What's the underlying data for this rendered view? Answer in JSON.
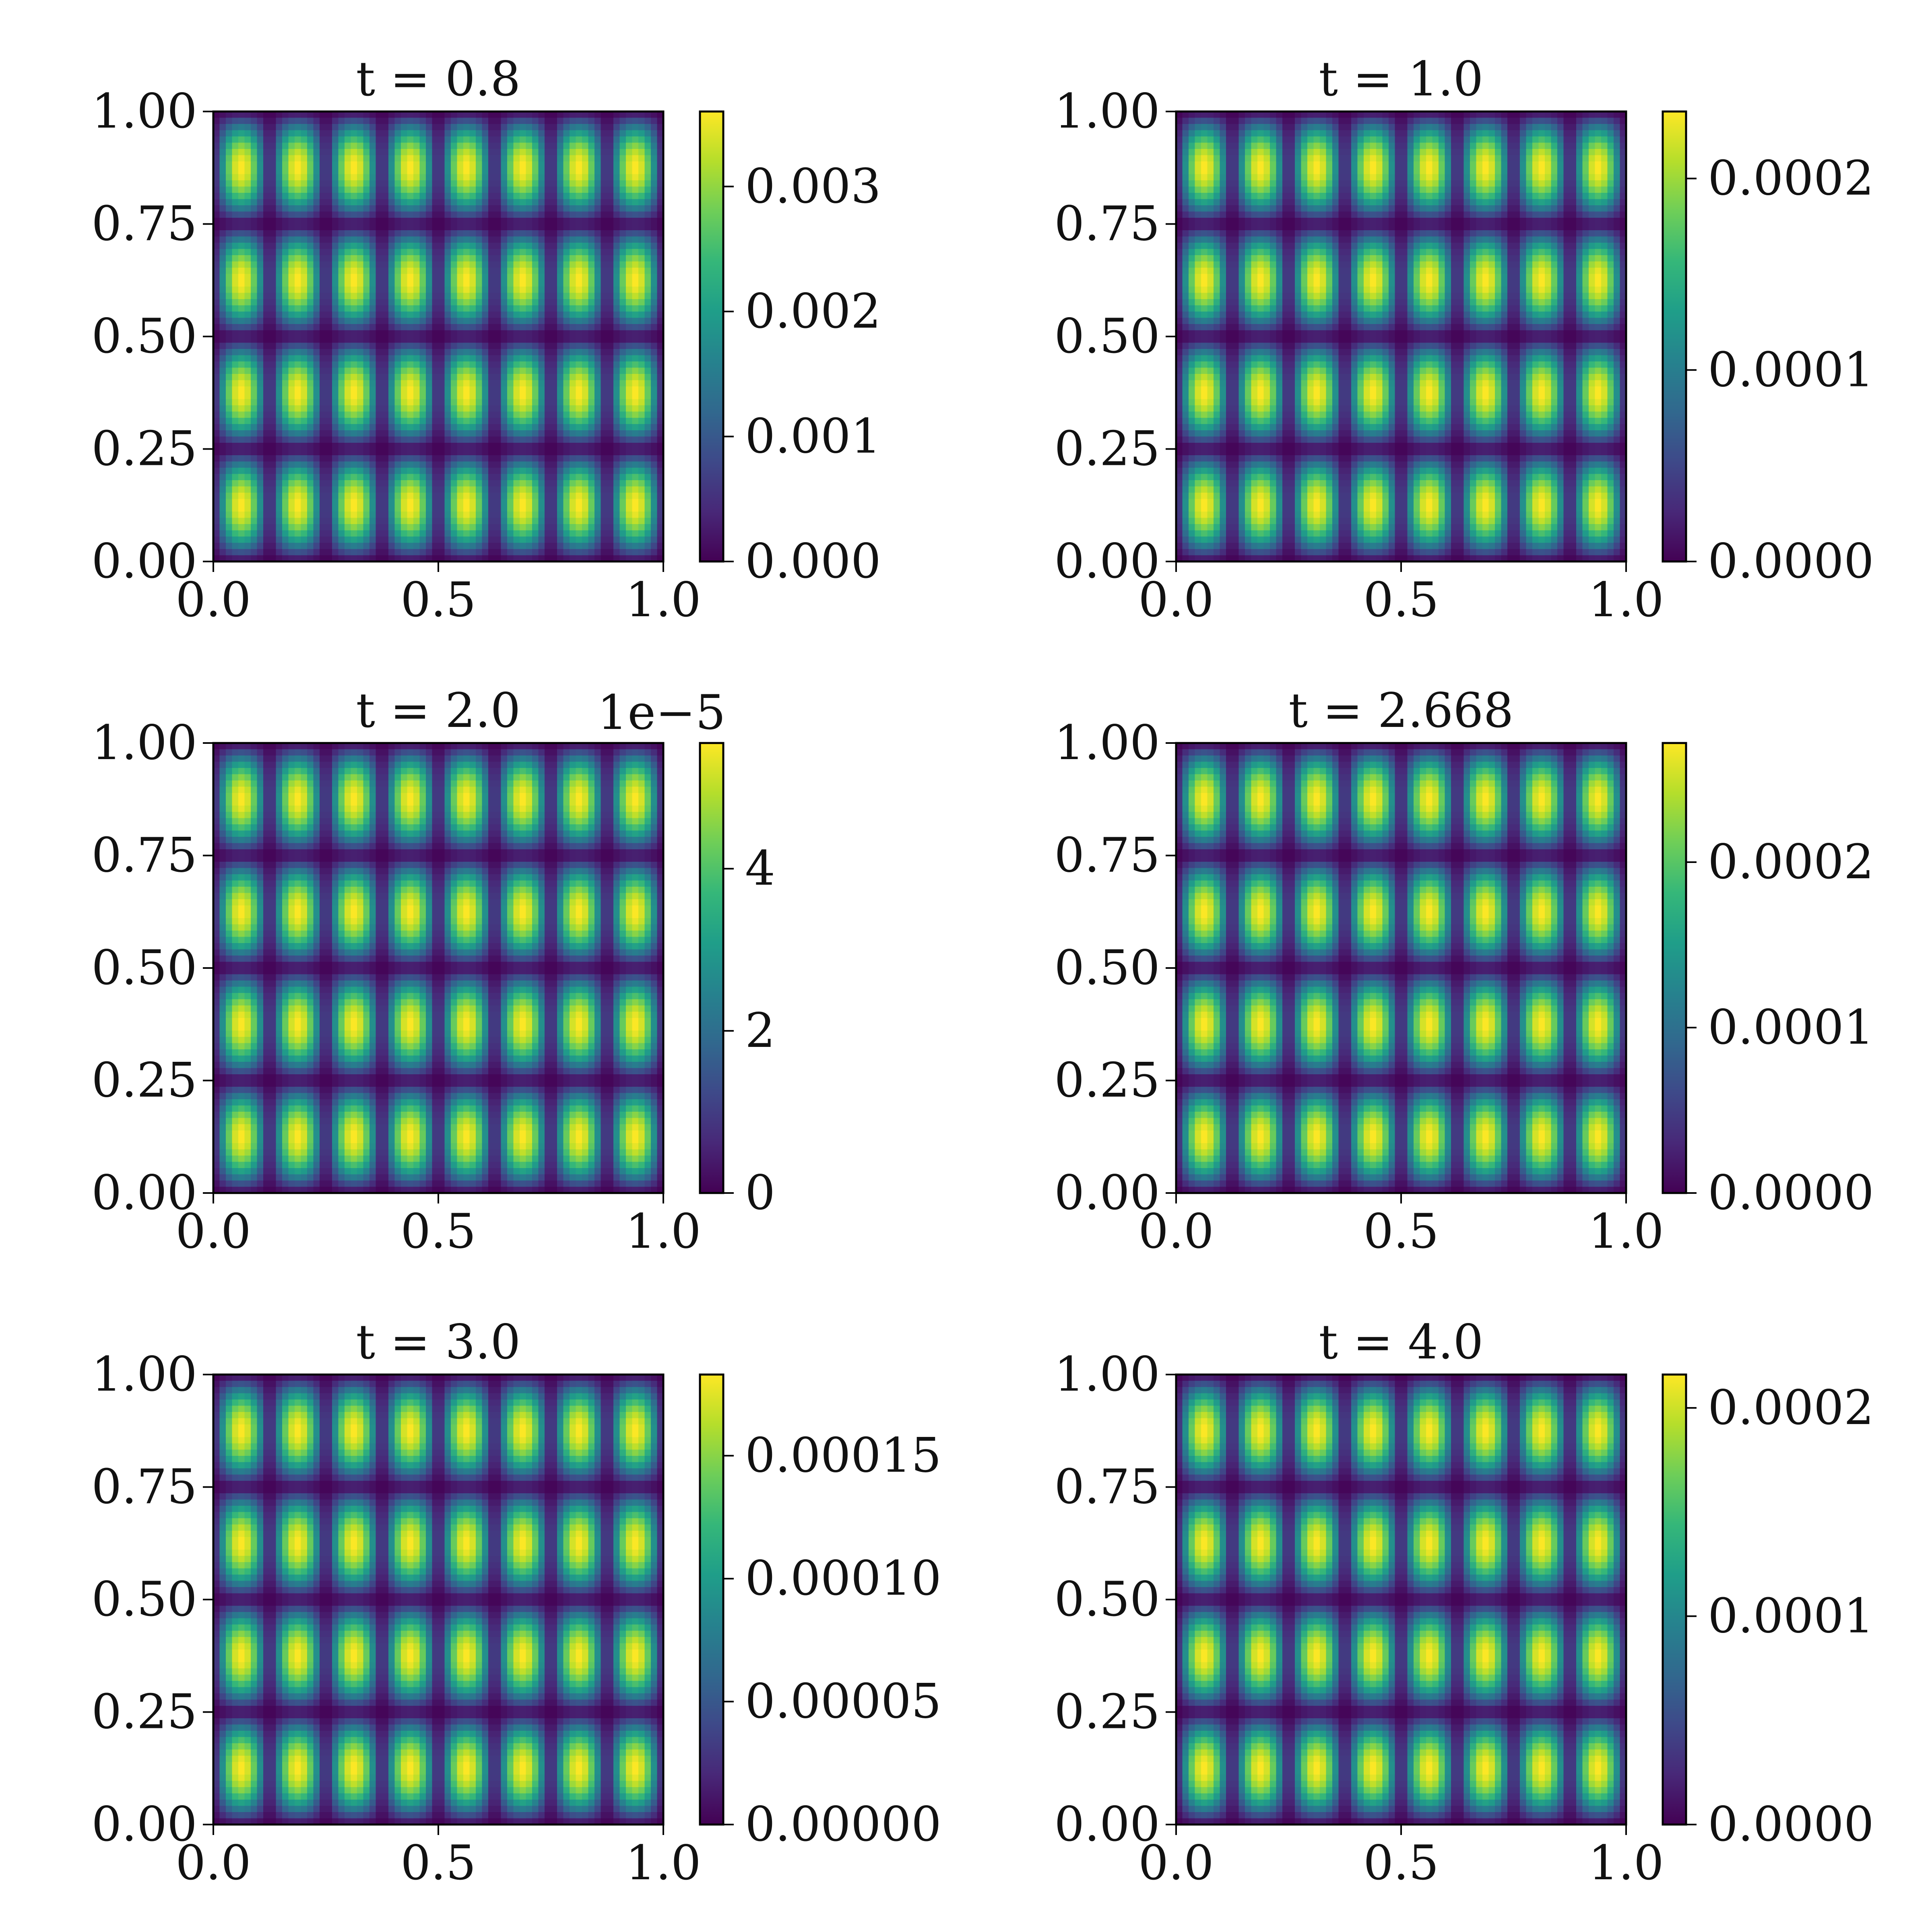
{
  "colormap": {
    "name": "viridis",
    "stops": [
      "#440154",
      "#482878",
      "#3e4989",
      "#31688e",
      "#26828e",
      "#1f9e89",
      "#35b779",
      "#6ece58",
      "#b5de2b",
      "#fde725"
    ]
  },
  "chart_data": [
    {
      "type": "heatmap",
      "title": "t = 0.8",
      "xlabel": "",
      "ylabel": "",
      "xlim": [
        0,
        1
      ],
      "ylim": [
        0,
        1
      ],
      "xticks": [
        "0.0",
        "0.5",
        "1.0"
      ],
      "yticks": [
        "0.00",
        "0.25",
        "0.50",
        "0.75",
        "1.00"
      ],
      "field": {
        "nx_cells": 8,
        "ny_cells": 4,
        "expression": "|sin(8*pi*x)*sin(4*pi*y)|"
      },
      "vmin": 0,
      "vmax": 0.0036,
      "colorbar": {
        "ticks": [
          0.0,
          0.001,
          0.002,
          0.003
        ],
        "labels": [
          "0.000",
          "0.001",
          "0.002",
          "0.003"
        ],
        "offset": ""
      }
    },
    {
      "type": "heatmap",
      "title": "t = 1.0",
      "xlabel": "",
      "ylabel": "",
      "xlim": [
        0,
        1
      ],
      "ylim": [
        0,
        1
      ],
      "xticks": [
        "0.0",
        "0.5",
        "1.0"
      ],
      "yticks": [
        "0.00",
        "0.25",
        "0.50",
        "0.75",
        "1.00"
      ],
      "field": {
        "nx_cells": 8,
        "ny_cells": 4,
        "expression": "|sin(8*pi*x)*sin(4*pi*y)|"
      },
      "vmin": 0,
      "vmax": 0.000235,
      "colorbar": {
        "ticks": [
          0.0,
          0.0001,
          0.0002
        ],
        "labels": [
          "0.0000",
          "0.0001",
          "0.0002"
        ],
        "offset": ""
      }
    },
    {
      "type": "heatmap",
      "title": "t = 2.0",
      "xlabel": "",
      "ylabel": "",
      "xlim": [
        0,
        1
      ],
      "ylim": [
        0,
        1
      ],
      "xticks": [
        "0.0",
        "0.5",
        "1.0"
      ],
      "yticks": [
        "0.00",
        "0.25",
        "0.50",
        "0.75",
        "1.00"
      ],
      "field": {
        "nx_cells": 8,
        "ny_cells": 4,
        "expression": "|sin(8*pi*x)*sin(4*pi*y)|"
      },
      "vmin": 0,
      "vmax": 5.55e-05,
      "colorbar": {
        "ticks": [
          0.0,
          2e-05,
          4e-05
        ],
        "labels": [
          "0",
          "2",
          "4"
        ],
        "offset": "1e−5"
      }
    },
    {
      "type": "heatmap",
      "title": "t = 2.668",
      "xlabel": "",
      "ylabel": "",
      "xlim": [
        0,
        1
      ],
      "ylim": [
        0,
        1
      ],
      "xticks": [
        "0.0",
        "0.5",
        "1.0"
      ],
      "yticks": [
        "0.00",
        "0.25",
        "0.50",
        "0.75",
        "1.00"
      ],
      "field": {
        "nx_cells": 8,
        "ny_cells": 4,
        "expression": "|sin(8*pi*x)*sin(4*pi*y)|"
      },
      "vmin": 0,
      "vmax": 0.000272,
      "colorbar": {
        "ticks": [
          0.0,
          0.0001,
          0.0002
        ],
        "labels": [
          "0.0000",
          "0.0001",
          "0.0002"
        ],
        "offset": ""
      }
    },
    {
      "type": "heatmap",
      "title": "t = 3.0",
      "xlabel": "",
      "ylabel": "",
      "xlim": [
        0,
        1
      ],
      "ylim": [
        0,
        1
      ],
      "xticks": [
        "0.0",
        "0.5",
        "1.0"
      ],
      "yticks": [
        "0.00",
        "0.25",
        "0.50",
        "0.75",
        "1.00"
      ],
      "field": {
        "nx_cells": 8,
        "ny_cells": 4,
        "expression": "|sin(8*pi*x)*sin(4*pi*y)|"
      },
      "vmin": 0,
      "vmax": 0.000183,
      "colorbar": {
        "ticks": [
          0.0,
          5e-05,
          0.0001,
          0.00015
        ],
        "labels": [
          "0.00000",
          "0.00005",
          "0.00010",
          "0.00015"
        ],
        "offset": ""
      }
    },
    {
      "type": "heatmap",
      "title": "t = 4.0",
      "xlabel": "",
      "ylabel": "",
      "xlim": [
        0,
        1
      ],
      "ylim": [
        0,
        1
      ],
      "xticks": [
        "0.0",
        "0.5",
        "1.0"
      ],
      "yticks": [
        "0.00",
        "0.25",
        "0.50",
        "0.75",
        "1.00"
      ],
      "field": {
        "nx_cells": 8,
        "ny_cells": 4,
        "expression": "|sin(8*pi*x)*sin(4*pi*y)|"
      },
      "vmin": 0,
      "vmax": 0.000216,
      "colorbar": {
        "ticks": [
          0.0,
          0.0001,
          0.0002
        ],
        "labels": [
          "0.0000",
          "0.0001",
          "0.0002"
        ],
        "offset": ""
      }
    }
  ]
}
